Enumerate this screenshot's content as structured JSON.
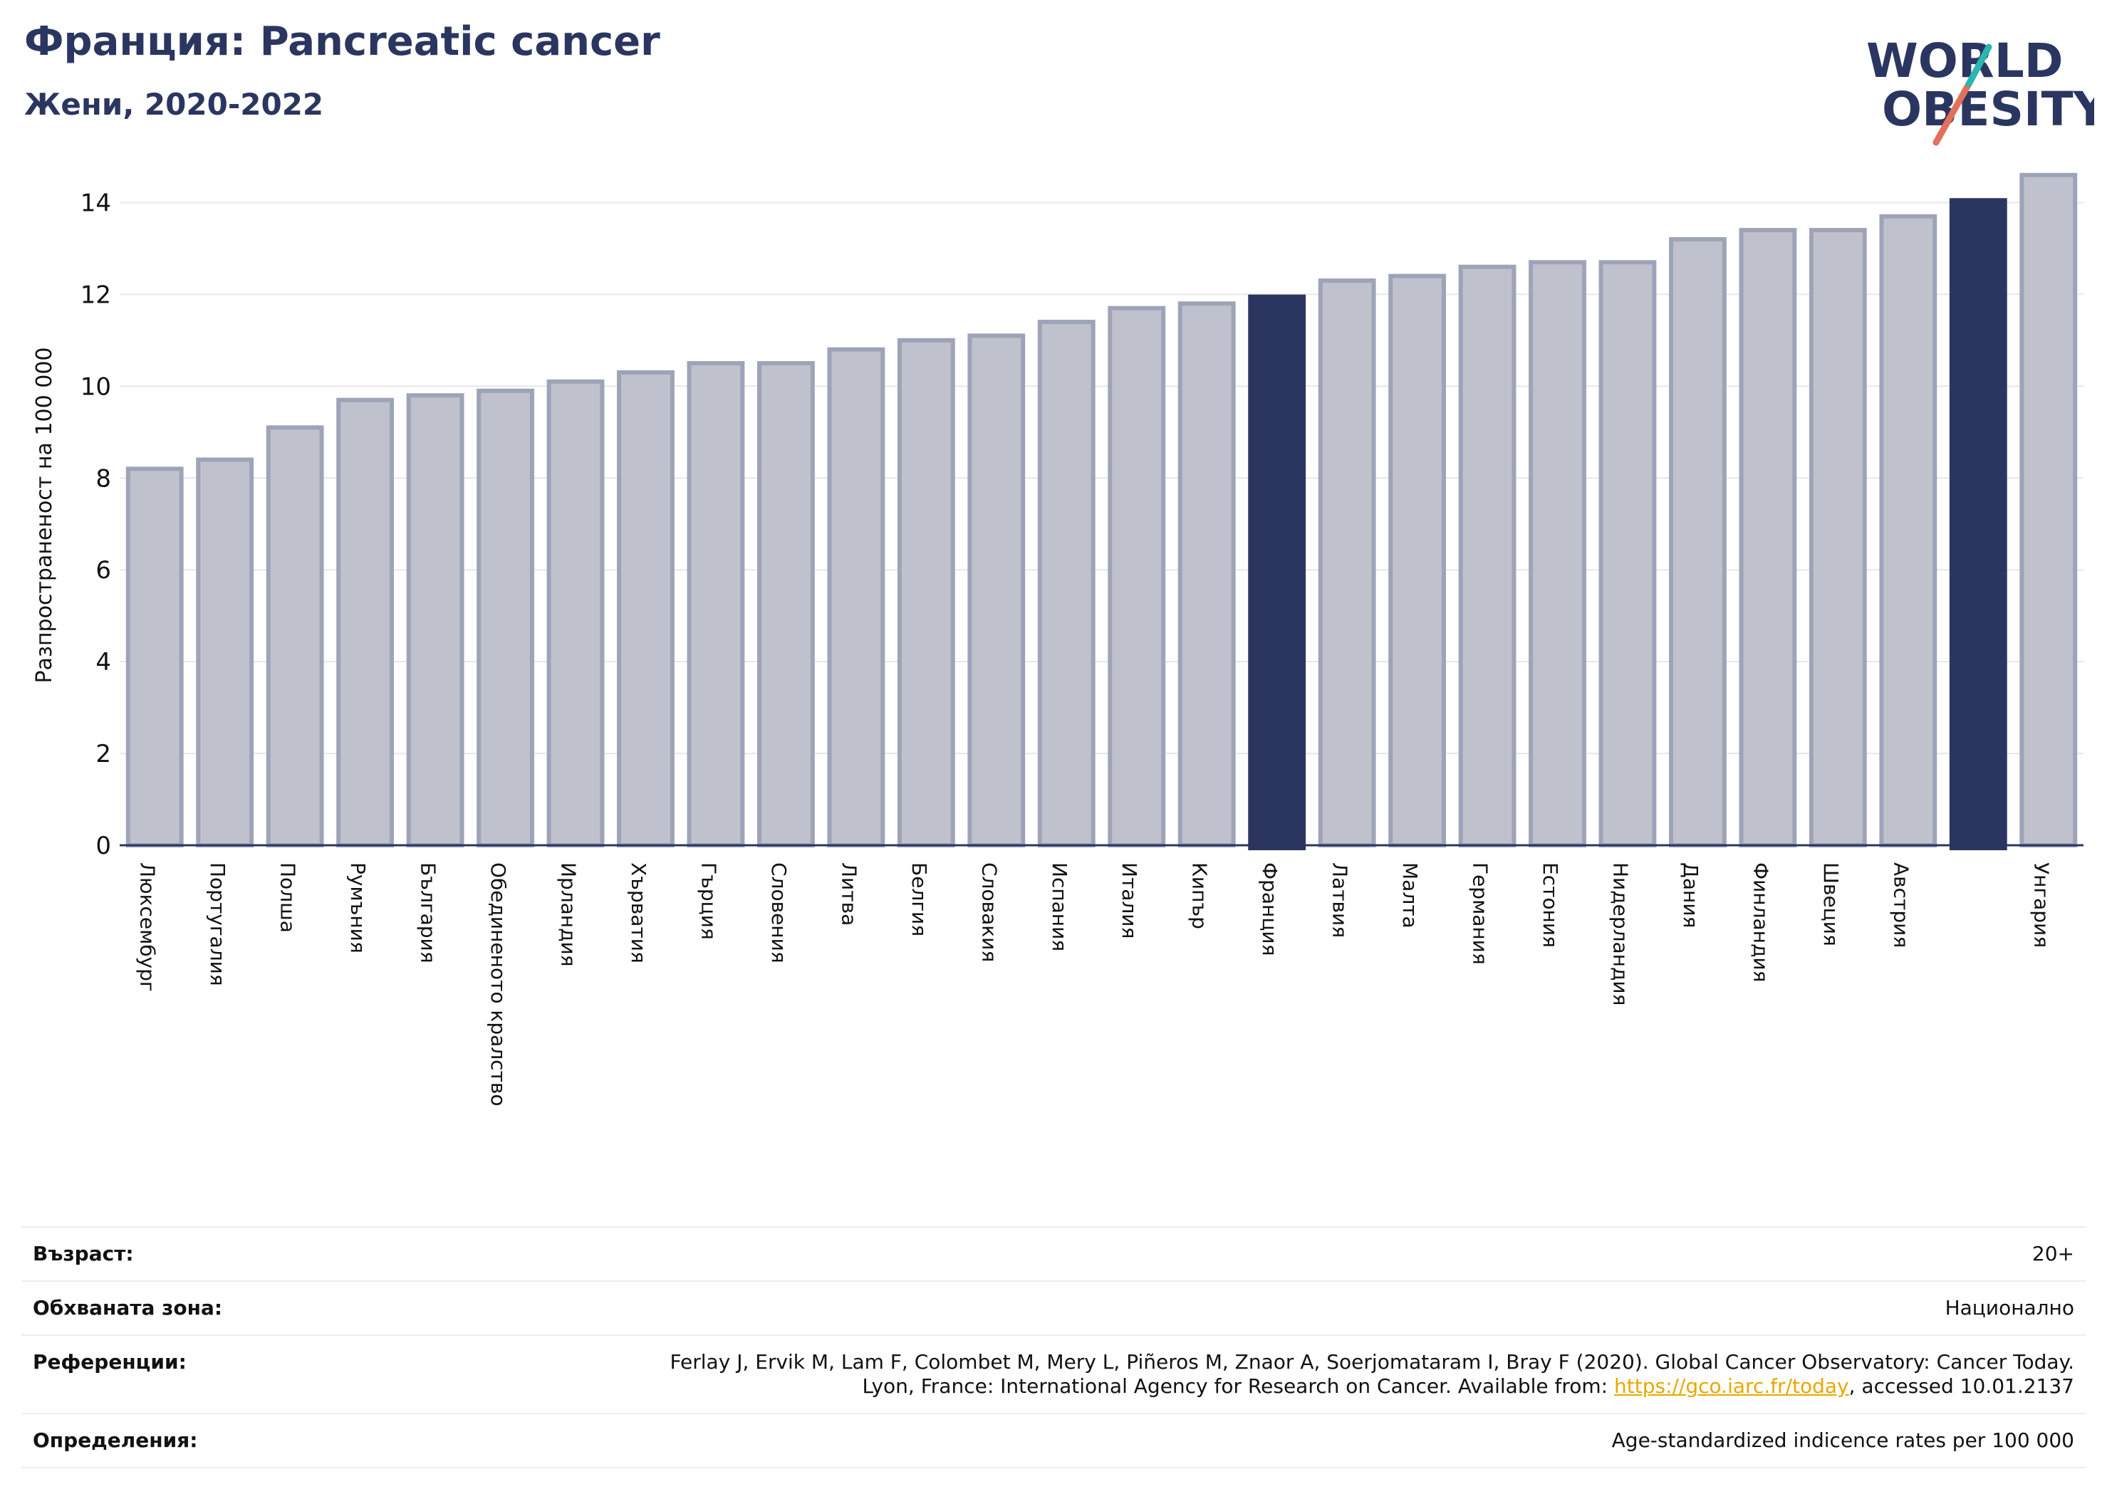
{
  "header": {
    "title": "Франция: Pancreatic cancer",
    "subtitle": "Жени, 2020-2022"
  },
  "logo": {
    "line1": "WORLD",
    "line2": "OBESITY",
    "name": "world-obesity-logo"
  },
  "chart_data": {
    "type": "bar",
    "ylabel": "Разпространеност  на 100 000",
    "xlabel": "",
    "ylim": [
      0,
      15
    ],
    "yticks": [
      0,
      2,
      4,
      6,
      8,
      10,
      12,
      14
    ],
    "grid": true,
    "categories": [
      "Люксембург",
      "Португалия",
      "Полша",
      "Румъния",
      "България",
      "Обединеното кралство",
      "Ирландия",
      "Хърватия",
      "Гърция",
      "Словения",
      "Литва",
      "Белгия",
      "Словакия",
      "Испания",
      "Италия",
      "Кипър",
      "Франция",
      "Латвия",
      "Малта",
      "Германия",
      "Естония",
      "Нидерландия",
      "Дания",
      "Финландия",
      "Швеция",
      "Австрия",
      "",
      "Унгария"
    ],
    "values": [
      8.2,
      8.4,
      9.1,
      9.7,
      9.8,
      9.9,
      10.1,
      10.3,
      10.5,
      10.5,
      10.8,
      11.0,
      11.1,
      11.4,
      11.7,
      11.8,
      11.95,
      12.3,
      12.4,
      12.6,
      12.7,
      12.7,
      13.2,
      13.4,
      13.4,
      13.7,
      14.05,
      14.6
    ],
    "highlighted": [
      16,
      26
    ],
    "colors": {
      "bar": "#bfc1cd",
      "bar_edge": "#9ea3b8",
      "highlight": "#2b3660",
      "grid": "#e6e7ec",
      "axis": "#2b3660"
    }
  },
  "meta": {
    "rows": [
      {
        "label": "Възраст:",
        "value": "20+"
      },
      {
        "label": "Обхваната зона:",
        "value": "Национално"
      },
      {
        "label": "Референции:",
        "value_line1": "Ferlay J, Ervik M, Lam F, Colombet M, Mery L, Piñeros M, Znaor A, Soerjomataram I, Bray F (2020). Global Cancer Observatory: Cancer Today.",
        "value_line2_pre": "Lyon, France: International Agency for Research on Cancer. Available from: ",
        "link": "https://gco.iarc.fr/today",
        "value_line2_post": ", accessed 10.01.2137"
      },
      {
        "label": "Определения:",
        "value": "Age-standardized indicence rates per 100 000"
      }
    ]
  }
}
